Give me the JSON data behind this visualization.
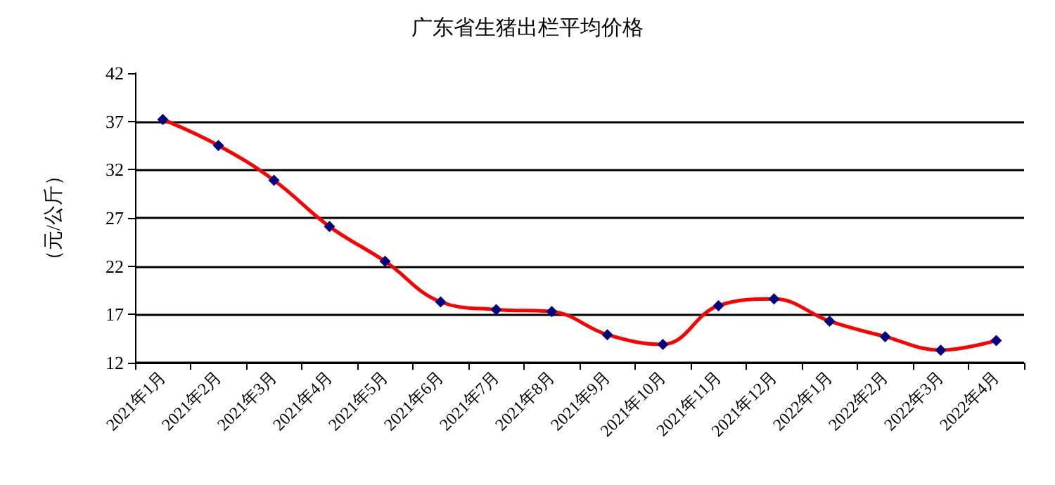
{
  "chart_data": {
    "type": "line",
    "title": "广东省生猪出栏平均价格",
    "ylabel": "（元/公斤）",
    "categories": [
      "2021年1月",
      "2021年2月",
      "2021年3月",
      "2021年4月",
      "2021年5月",
      "2021年6月",
      "2021年7月",
      "2021年8月",
      "2021年9月",
      "2021年10月",
      "2021年11月",
      "2021年12月",
      "2022年1月",
      "2022年2月",
      "2022年3月",
      "2022年4月"
    ],
    "series": [
      {
        "color": "#ff0000",
        "values": [
          37.2,
          34.5,
          30.9,
          26.1,
          22.5,
          18.3,
          17.5,
          17.3,
          14.9,
          13.9,
          17.9,
          18.6,
          16.3,
          14.7,
          13.3,
          14.3
        ]
      }
    ],
    "ylim": [
      12,
      42
    ],
    "yticks": [
      12,
      17,
      22,
      27,
      32,
      37,
      42
    ],
    "grid": "y",
    "marker": "diamond",
    "line_style": "solid"
  }
}
